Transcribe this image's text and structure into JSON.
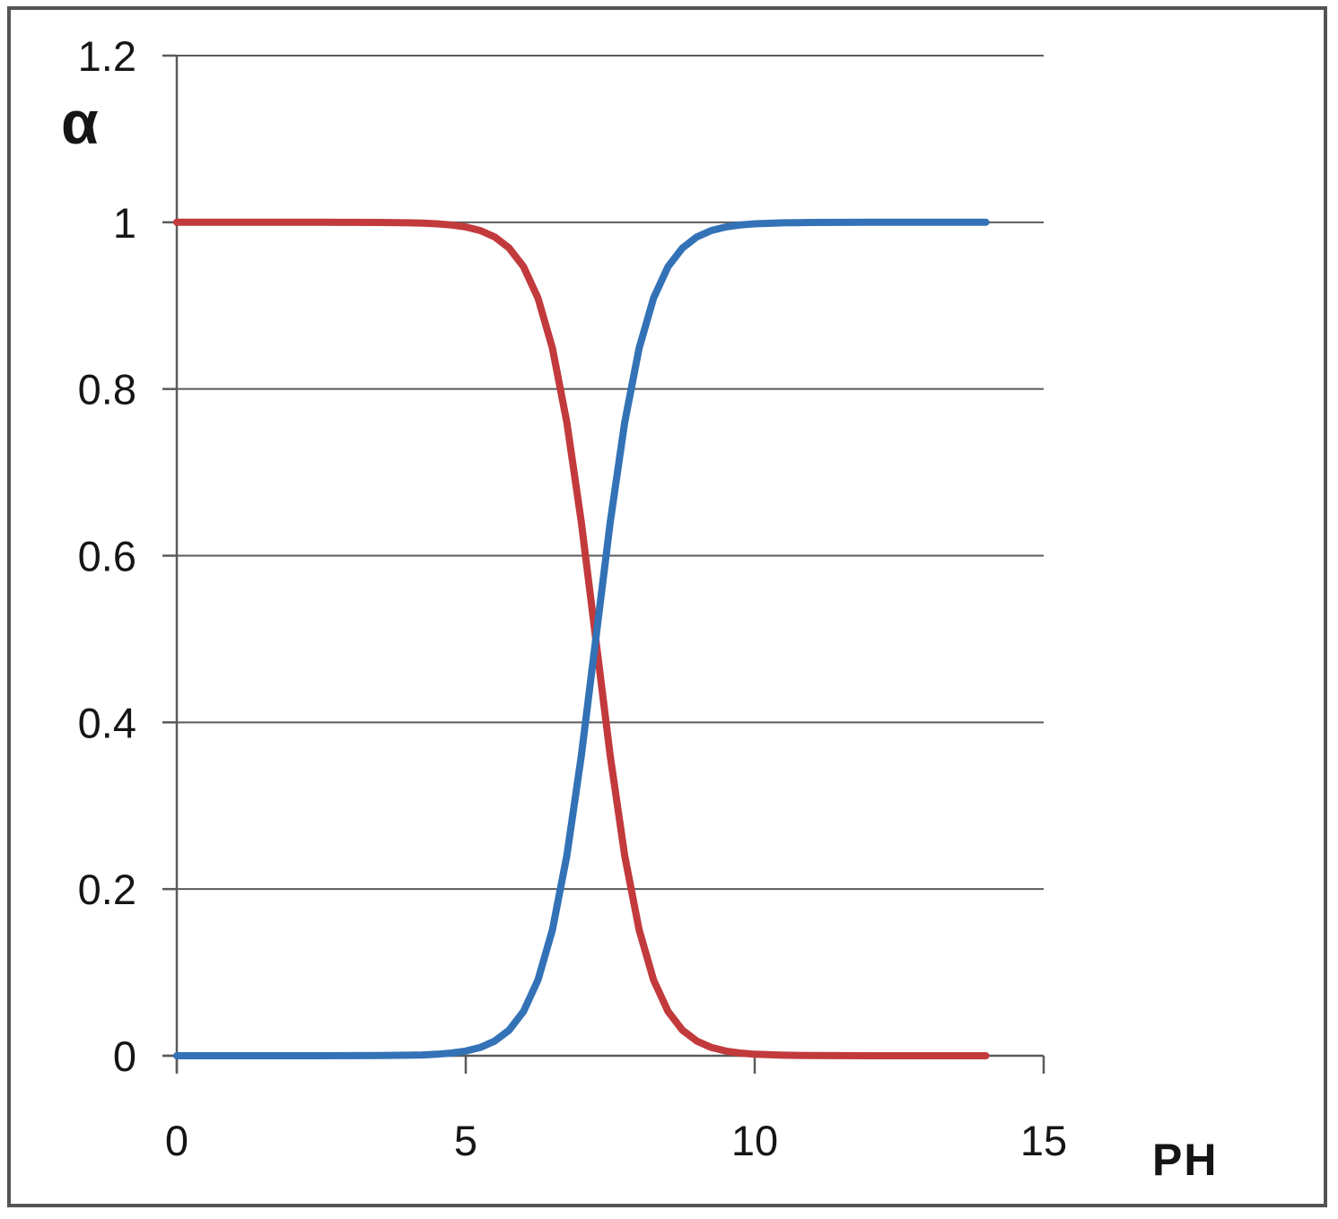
{
  "figure": {
    "ylabel": "α",
    "xlabel": "PH",
    "background_color": "#ffffff",
    "frame_color": "#545454",
    "grid_color": "#5a5a5a",
    "text_color": "#151515"
  },
  "chart_data": {
    "type": "line",
    "title": "",
    "xlabel": "PH",
    "ylabel": "α",
    "xlim": [
      0,
      15
    ],
    "ylim": [
      0,
      1.2
    ],
    "x_ticks": [
      0,
      5,
      10,
      15
    ],
    "x_tick_labels": [
      "0",
      "5",
      "10",
      "15"
    ],
    "y_ticks": [
      0,
      0.2,
      0.4,
      0.6,
      0.8,
      1,
      1.2
    ],
    "y_tick_labels": [
      "0",
      "0.2",
      "0.4",
      "0.6",
      "0.8",
      "1",
      "1.2"
    ],
    "grid": true,
    "legend": "none",
    "crossing_point": {
      "x": 7.25,
      "y": 0.5
    },
    "series": [
      {
        "name": "red-decreasing-curve",
        "color": "#c23a3c",
        "x": [
          0,
          0.5,
          1,
          1.5,
          2,
          2.5,
          3,
          3.5,
          4,
          4.25,
          4.5,
          4.75,
          5,
          5.25,
          5.5,
          5.75,
          6,
          6.25,
          6.5,
          6.75,
          7,
          7.25,
          7.5,
          7.75,
          8,
          8.25,
          8.5,
          8.75,
          9,
          9.25,
          9.5,
          9.75,
          10,
          10.5,
          11,
          11.5,
          12,
          12.5,
          13,
          13.5,
          14
        ],
        "y": [
          1,
          1,
          1,
          1,
          1,
          1,
          0.9999,
          0.9998,
          0.9994,
          0.999,
          0.9982,
          0.9968,
          0.9944,
          0.9901,
          0.9825,
          0.9693,
          0.9468,
          0.9091,
          0.8489,
          0.7597,
          0.6401,
          0.5,
          0.3599,
          0.2403,
          0.1511,
          0.0909,
          0.0532,
          0.0307,
          0.0175,
          0.0099,
          0.0056,
          0.0032,
          0.0018,
          0.0006,
          0.0002,
          0.0001,
          0,
          0,
          0,
          0,
          0
        ]
      },
      {
        "name": "blue-increasing-curve",
        "color": "#3372b6",
        "x": [
          0,
          0.5,
          1,
          1.5,
          2,
          2.5,
          3,
          3.5,
          4,
          4.25,
          4.5,
          4.75,
          5,
          5.25,
          5.5,
          5.75,
          6,
          6.25,
          6.5,
          6.75,
          7,
          7.25,
          7.5,
          7.75,
          8,
          8.25,
          8.5,
          8.75,
          9,
          9.25,
          9.5,
          9.75,
          10,
          10.5,
          11,
          11.5,
          12,
          12.5,
          13,
          13.5,
          14
        ],
        "y": [
          0,
          0,
          0,
          0,
          0,
          0,
          0.0001,
          0.0002,
          0.0006,
          0.001,
          0.0018,
          0.0032,
          0.0056,
          0.0099,
          0.0175,
          0.0307,
          0.0532,
          0.0909,
          0.1511,
          0.2403,
          0.3599,
          0.5,
          0.6401,
          0.7597,
          0.8489,
          0.9091,
          0.9468,
          0.9693,
          0.9825,
          0.9901,
          0.9944,
          0.9968,
          0.9982,
          0.9994,
          0.9998,
          0.9999,
          1,
          1,
          1,
          1,
          1
        ]
      }
    ]
  }
}
